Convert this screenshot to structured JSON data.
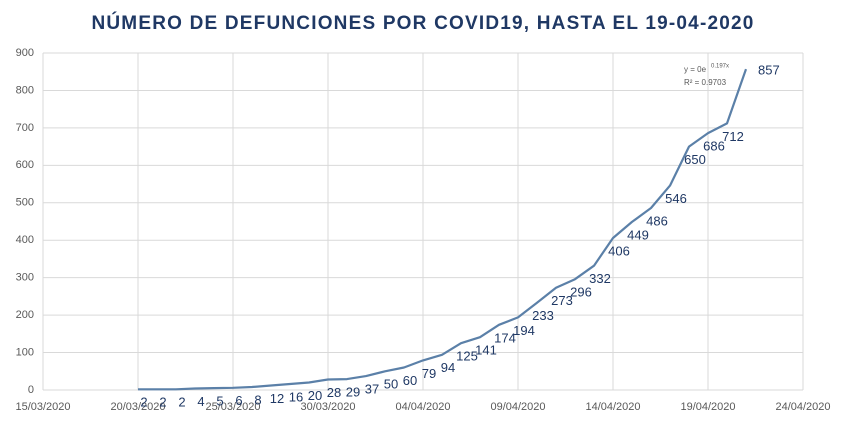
{
  "chart_data": {
    "type": "line",
    "title": "NÚMERO DE DEFUNCIONES POR COVID19, HASTA EL 19-04-2020",
    "x": [
      "20/03/2020",
      "21/03/2020",
      "22/03/2020",
      "23/03/2020",
      "24/03/2020",
      "25/03/2020",
      "26/03/2020",
      "27/03/2020",
      "28/03/2020",
      "29/03/2020",
      "30/03/2020",
      "31/03/2020",
      "01/04/2020",
      "02/04/2020",
      "03/04/2020",
      "04/04/2020",
      "05/04/2020",
      "06/04/2020",
      "07/04/2020",
      "08/04/2020",
      "09/04/2020",
      "10/04/2020",
      "11/04/2020",
      "12/04/2020",
      "13/04/2020",
      "14/04/2020",
      "15/04/2020",
      "16/04/2020",
      "17/04/2020",
      "18/04/2020",
      "19/04/2020",
      "20/04/2020",
      "21/04/2020"
    ],
    "series": [
      {
        "name": "Defunciones",
        "color": "#5b80a8",
        "values": [
          2,
          2,
          2,
          4,
          5,
          6,
          8,
          12,
          16,
          20,
          28,
          29,
          37,
          50,
          60,
          79,
          94,
          125,
          141,
          174,
          194,
          233,
          273,
          296,
          332,
          406,
          449,
          486,
          546,
          650,
          686,
          712,
          857
        ]
      }
    ],
    "xlim": [
      "15/03/2020",
      "24/04/2020"
    ],
    "xticks": [
      "15/03/2020",
      "20/03/2020",
      "25/03/2020",
      "30/03/2020",
      "04/04/2020",
      "09/04/2020",
      "14/04/2020",
      "19/04/2020",
      "24/04/2020"
    ],
    "ylim": [
      0,
      900
    ],
    "yticks": [
      0,
      100,
      200,
      300,
      400,
      500,
      600,
      700,
      800,
      900
    ],
    "grid": true,
    "annotations": [
      "y = 0e",
      "0.197x",
      "R² = 0.9703"
    ]
  }
}
